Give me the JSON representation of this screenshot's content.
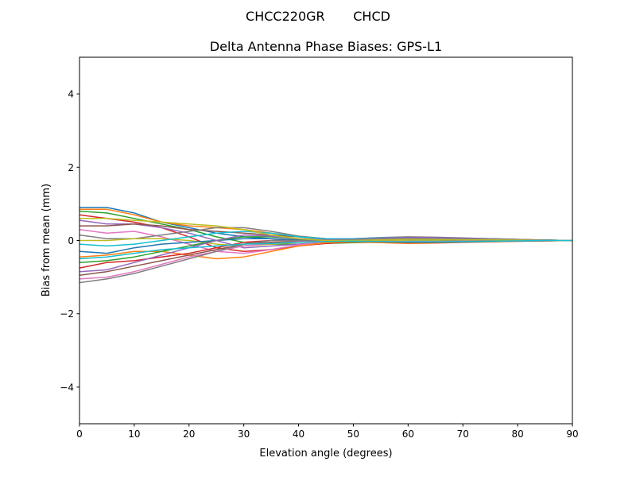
{
  "chart_data": {
    "type": "line",
    "suptitle": "CHCC220GR       CHCD",
    "title": "Delta Antenna Phase Biases: GPS-L1",
    "xlabel": "Elevation angle (degrees)",
    "ylabel": "Bias from mean (mm)",
    "xlim": [
      0,
      90
    ],
    "ylim": [
      -5,
      5
    ],
    "xticks": [
      0,
      10,
      20,
      30,
      40,
      50,
      60,
      70,
      80,
      90
    ],
    "yticks": [
      -4,
      -2,
      0,
      2,
      4
    ],
    "ytick_labels": [
      "−4",
      "−2",
      "0",
      "2",
      "4"
    ],
    "grid": false,
    "colors": [
      "#1f77b4",
      "#ff7f0e",
      "#2ca02c",
      "#d62728",
      "#9467bd",
      "#8c564b",
      "#e377c2",
      "#7f7f7f",
      "#bcbd22",
      "#17becf"
    ],
    "x": [
      0,
      5,
      10,
      15,
      20,
      25,
      30,
      35,
      40,
      45,
      50,
      55,
      60,
      65,
      70,
      75,
      80,
      85,
      90
    ],
    "series": [
      {
        "values": [
          0.9,
          0.9,
          0.75,
          0.5,
          0.35,
          0.2,
          0.1,
          0.05,
          0,
          -0.02,
          -0.03,
          -0.03,
          -0.02,
          -0.02,
          -0.01,
          -0.01,
          0,
          0,
          0
        ]
      },
      {
        "values": [
          0.85,
          0.85,
          0.7,
          0.5,
          0.4,
          0.35,
          0.3,
          0.2,
          0.1,
          0.05,
          0.02,
          0.03,
          0.05,
          0.05,
          0.04,
          0.03,
          0.02,
          0.01,
          0
        ]
      },
      {
        "values": [
          0.8,
          0.75,
          0.6,
          0.45,
          0.3,
          0.1,
          -0.05,
          -0.1,
          -0.1,
          -0.08,
          -0.06,
          -0.05,
          -0.04,
          -0.03,
          -0.02,
          -0.02,
          -0.01,
          0,
          0
        ]
      },
      {
        "values": [
          0.7,
          0.6,
          0.5,
          0.35,
          0.1,
          -0.2,
          -0.3,
          -0.25,
          -0.15,
          -0.08,
          -0.04,
          -0.05,
          -0.06,
          -0.05,
          -0.04,
          -0.03,
          -0.02,
          -0.01,
          0
        ]
      },
      {
        "values": [
          0.55,
          0.45,
          0.45,
          0.35,
          0.2,
          0,
          -0.2,
          -0.15,
          -0.1,
          -0.05,
          0,
          0.02,
          0.03,
          0.03,
          0.02,
          0.02,
          0.01,
          0,
          0
        ]
      },
      {
        "values": [
          0.4,
          0.4,
          0.45,
          0.4,
          0.3,
          0.25,
          0.2,
          0.15,
          0.1,
          0.05,
          0.05,
          0.06,
          0.08,
          0.08,
          0.06,
          0.05,
          0.03,
          0.01,
          0
        ]
      },
      {
        "values": [
          0.3,
          0.2,
          0.25,
          0.1,
          -0.1,
          -0.3,
          -0.35,
          -0.25,
          -0.12,
          -0.05,
          -0.02,
          -0.04,
          -0.06,
          -0.05,
          -0.04,
          -0.03,
          -0.02,
          -0.01,
          0
        ]
      },
      {
        "values": [
          0.15,
          0.05,
          0.05,
          0.15,
          0.25,
          0.35,
          0.35,
          0.25,
          0.12,
          0.05,
          0.05,
          0.08,
          0.1,
          0.09,
          0.07,
          0.05,
          0.03,
          0.01,
          0
        ]
      },
      {
        "values": [
          0,
          0,
          0.05,
          0.05,
          0,
          -0.1,
          -0.15,
          -0.1,
          -0.05,
          -0.02,
          0,
          0,
          0.01,
          0.01,
          0.01,
          0,
          0,
          0,
          0
        ]
      },
      {
        "values": [
          -0.1,
          -0.15,
          -0.1,
          0,
          0.1,
          0.2,
          0.25,
          0.2,
          0.1,
          0.05,
          0.05,
          0.07,
          0.08,
          0.07,
          0.05,
          0.04,
          0.02,
          0.01,
          0
        ]
      },
      {
        "values": [
          -0.3,
          -0.35,
          -0.2,
          -0.1,
          -0.05,
          0,
          0.05,
          0.05,
          0.02,
          0,
          0,
          0.02,
          0.03,
          0.03,
          0.02,
          0.01,
          0.01,
          0,
          0
        ]
      },
      {
        "values": [
          -0.45,
          -0.4,
          -0.3,
          -0.3,
          -0.4,
          -0.5,
          -0.45,
          -0.3,
          -0.15,
          -0.06,
          -0.04,
          -0.06,
          -0.08,
          -0.07,
          -0.05,
          -0.04,
          -0.02,
          -0.01,
          0
        ]
      },
      {
        "values": [
          -0.6,
          -0.55,
          -0.45,
          -0.3,
          -0.15,
          0,
          0.1,
          0.1,
          0.05,
          0.02,
          0.02,
          0.04,
          0.05,
          0.05,
          0.04,
          0.03,
          0.02,
          0.01,
          0
        ]
      },
      {
        "values": [
          -0.75,
          -0.6,
          -0.55,
          -0.45,
          -0.35,
          -0.2,
          -0.05,
          0,
          0,
          -0.01,
          -0.02,
          -0.03,
          -0.04,
          -0.04,
          -0.03,
          -0.02,
          -0.01,
          0,
          0
        ]
      },
      {
        "values": [
          -0.85,
          -0.8,
          -0.6,
          -0.4,
          -0.2,
          0,
          0.15,
          0.12,
          0.05,
          0.02,
          0.03,
          0.06,
          0.08,
          0.08,
          0.06,
          0.04,
          0.02,
          0.01,
          0
        ]
      },
      {
        "values": [
          -0.95,
          -0.85,
          -0.7,
          -0.55,
          -0.4,
          -0.25,
          -0.1,
          -0.05,
          -0.03,
          -0.02,
          -0.02,
          -0.04,
          -0.06,
          -0.06,
          -0.05,
          -0.03,
          -0.02,
          -0.01,
          0
        ]
      },
      {
        "values": [
          -1.05,
          -1.0,
          -0.85,
          -0.65,
          -0.45,
          -0.3,
          -0.15,
          -0.08,
          -0.04,
          -0.02,
          -0.02,
          -0.03,
          -0.03,
          -0.03,
          -0.02,
          -0.02,
          -0.01,
          0,
          0
        ]
      },
      {
        "values": [
          -1.15,
          -1.05,
          -0.9,
          -0.7,
          -0.5,
          -0.3,
          -0.1,
          0,
          0,
          0,
          0.02,
          0.04,
          0.05,
          0.05,
          0.04,
          0.03,
          0.02,
          0.01,
          0
        ]
      },
      {
        "values": [
          0.6,
          0.6,
          0.55,
          0.5,
          0.45,
          0.4,
          0.3,
          0.15,
          0.05,
          0,
          0,
          0.02,
          0.03,
          0.03,
          0.02,
          0.02,
          0.01,
          0,
          0
        ]
      },
      {
        "values": [
          -0.5,
          -0.45,
          -0.35,
          -0.25,
          -0.2,
          -0.15,
          -0.1,
          -0.08,
          -0.05,
          -0.03,
          -0.02,
          -0.03,
          -0.04,
          -0.04,
          -0.03,
          -0.02,
          -0.01,
          0,
          0
        ]
      }
    ]
  }
}
